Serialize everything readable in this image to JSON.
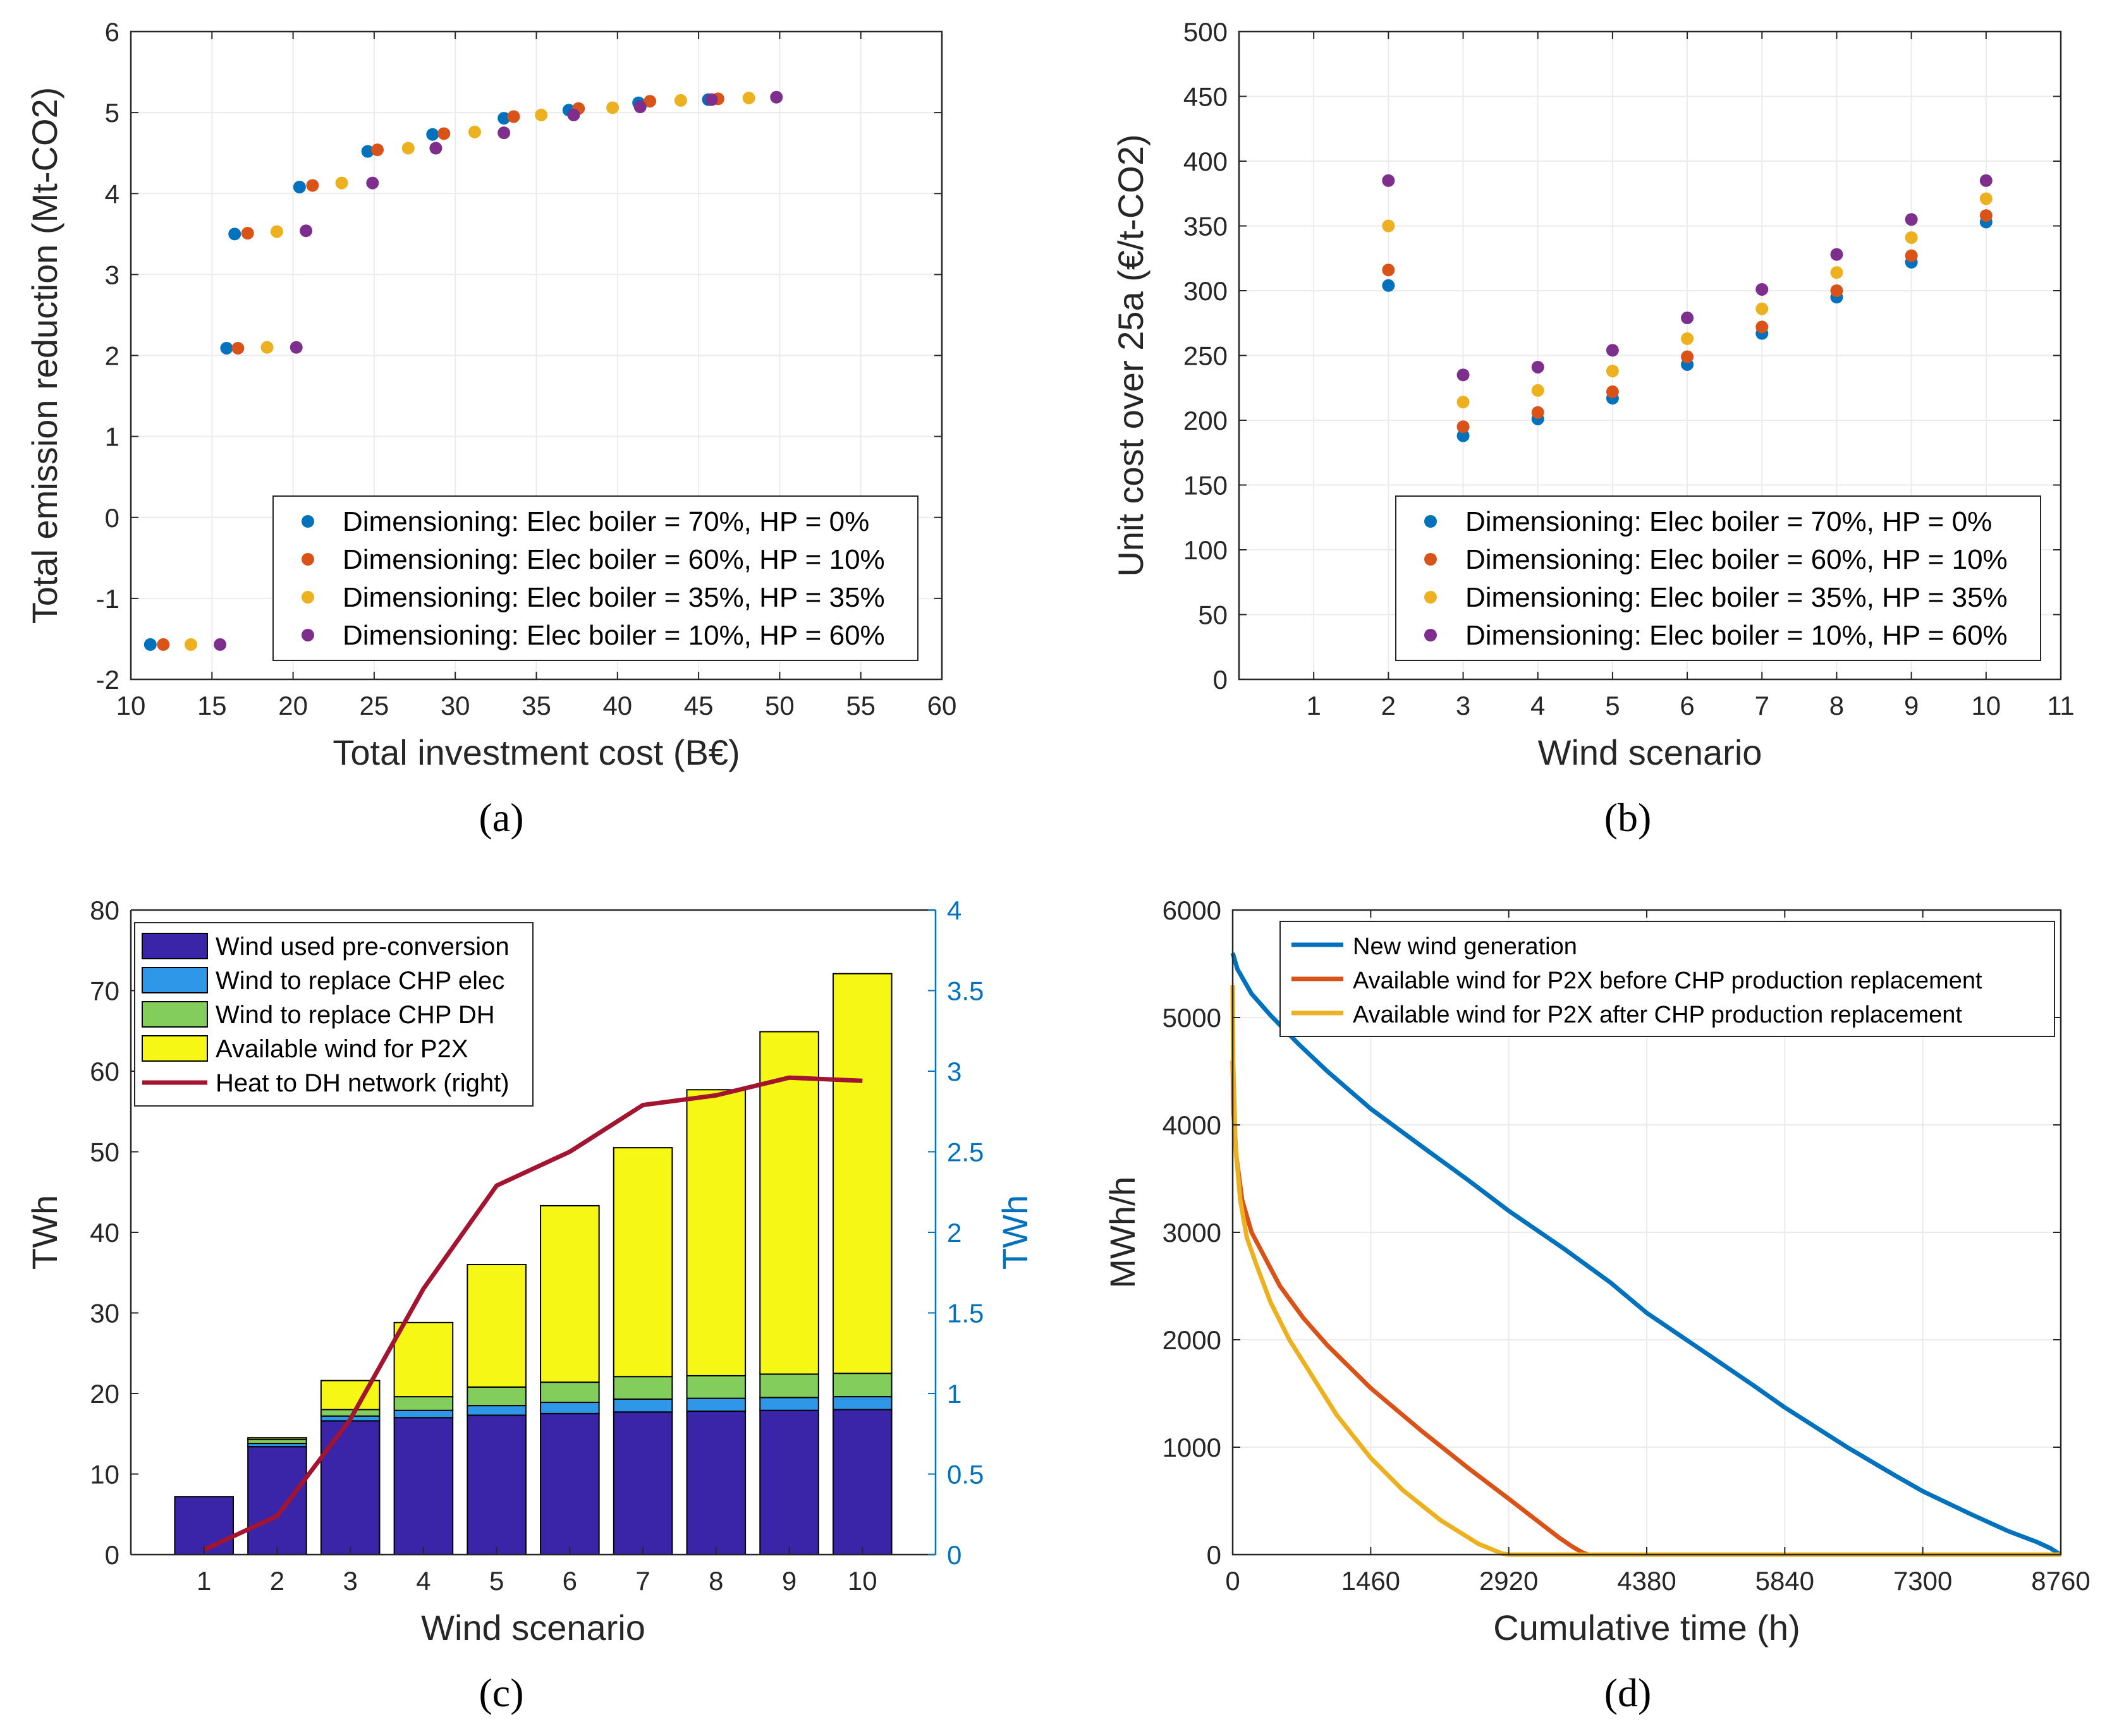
{
  "chart_data": [
    {
      "panel": "a",
      "panel_label": "(a)",
      "type": "scatter",
      "xlabel": "Total investment cost (B€)",
      "ylabel": "Total emission reduction (Mt-CO2)",
      "xlim": [
        10,
        60
      ],
      "ylim": [
        -2,
        6
      ],
      "xticks": [
        10,
        15,
        20,
        25,
        30,
        35,
        40,
        45,
        50,
        55,
        60
      ],
      "yticks": [
        -2,
        -1,
        0,
        1,
        2,
        3,
        4,
        5,
        6
      ],
      "grid": true,
      "legend_position": "bottom-right",
      "series": [
        {
          "name": "Dimensioning: Elec boiler = 70%, HP = 0%",
          "color": "#0072BD",
          "points": [
            [
              11.2,
              -1.57
            ],
            [
              15.9,
              2.09
            ],
            [
              16.4,
              3.5
            ],
            [
              20.4,
              4.08
            ],
            [
              24.6,
              4.52
            ],
            [
              28.6,
              4.73
            ],
            [
              33.0,
              4.93
            ],
            [
              37.0,
              5.03
            ],
            [
              41.3,
              5.12
            ],
            [
              45.6,
              5.16
            ]
          ]
        },
        {
          "name": "Dimensioning: Elec boiler = 60%, HP = 10%",
          "color": "#D95319",
          "points": [
            [
              12.0,
              -1.57
            ],
            [
              16.6,
              2.09
            ],
            [
              17.2,
              3.51
            ],
            [
              21.2,
              4.1
            ],
            [
              25.2,
              4.54
            ],
            [
              29.3,
              4.74
            ],
            [
              33.6,
              4.95
            ],
            [
              37.6,
              5.05
            ],
            [
              42.0,
              5.14
            ],
            [
              46.2,
              5.17
            ]
          ]
        },
        {
          "name": "Dimensioning: Elec boiler = 35%, HP = 35%",
          "color": "#EDB120",
          "points": [
            [
              13.7,
              -1.57
            ],
            [
              18.4,
              2.1
            ],
            [
              19.0,
              3.53
            ],
            [
              23.0,
              4.13
            ],
            [
              27.1,
              4.56
            ],
            [
              31.2,
              4.76
            ],
            [
              35.3,
              4.97
            ],
            [
              39.7,
              5.06
            ],
            [
              43.9,
              5.15
            ],
            [
              48.1,
              5.18
            ]
          ]
        },
        {
          "name": "Dimensioning: Elec boiler = 10%, HP = 60%",
          "color": "#7E2F8E",
          "points": [
            [
              15.5,
              -1.57
            ],
            [
              20.2,
              2.1
            ],
            [
              20.8,
              3.54
            ],
            [
              24.9,
              4.13
            ],
            [
              28.8,
              4.56
            ],
            [
              33.0,
              4.75
            ],
            [
              37.3,
              4.97
            ],
            [
              41.4,
              5.07
            ],
            [
              45.8,
              5.16
            ],
            [
              49.8,
              5.19
            ]
          ]
        }
      ]
    },
    {
      "panel": "b",
      "panel_label": "(b)",
      "type": "scatter",
      "xlabel": "Wind scenario",
      "ylabel": "Unit cost over 25a (€/t-CO2)",
      "xlim": [
        0,
        11
      ],
      "ylim": [
        0,
        500
      ],
      "xticks": [
        1,
        2,
        3,
        4,
        5,
        6,
        7,
        8,
        9,
        10,
        11
      ],
      "yticks": [
        0,
        50,
        100,
        150,
        200,
        250,
        300,
        350,
        400,
        450,
        500
      ],
      "grid": true,
      "legend_position": "bottom-right",
      "series": [
        {
          "name": "Dimensioning: Elec boiler = 70%, HP = 0%",
          "color": "#0072BD",
          "x": [
            2,
            3,
            4,
            5,
            6,
            7,
            8,
            9,
            10
          ],
          "values": [
            304,
            188,
            201,
            217,
            243,
            267,
            295,
            322,
            353
          ]
        },
        {
          "name": "Dimensioning: Elec boiler = 60%, HP = 10%",
          "color": "#D95319",
          "x": [
            2,
            3,
            4,
            5,
            6,
            7,
            8,
            9,
            10
          ],
          "values": [
            316,
            195,
            206,
            222,
            249,
            272,
            300,
            327,
            358
          ]
        },
        {
          "name": "Dimensioning: Elec boiler = 35%, HP = 35%",
          "color": "#EDB120",
          "x": [
            2,
            3,
            4,
            5,
            6,
            7,
            8,
            9,
            10
          ],
          "values": [
            350,
            214,
            223,
            238,
            263,
            286,
            314,
            341,
            371
          ]
        },
        {
          "name": "Dimensioning: Elec boiler = 10%, HP = 60%",
          "color": "#7E2F8E",
          "x": [
            2,
            3,
            4,
            5,
            6,
            7,
            8,
            9,
            10
          ],
          "values": [
            385,
            235,
            241,
            254,
            279,
            301,
            328,
            355,
            385
          ]
        }
      ]
    },
    {
      "panel": "c",
      "panel_label": "(c)",
      "type": "bar",
      "stacked": true,
      "xlabel": "Wind scenario",
      "ylabel": "TWh",
      "ylabel_right": "TWh",
      "ylim": [
        0,
        80
      ],
      "ylim_right": [
        0,
        4
      ],
      "yticks": [
        0,
        10,
        20,
        30,
        40,
        50,
        60,
        70,
        80
      ],
      "yticks_right": [
        "0",
        "0.5",
        "1",
        "1.5",
        "2",
        "2.5",
        "3",
        "3.5",
        "4"
      ],
      "categories": [
        "1",
        "2",
        "3",
        "4",
        "5",
        "6",
        "7",
        "8",
        "9",
        "10"
      ],
      "grid": false,
      "legend_position": "top-left",
      "series": [
        {
          "name": "Wind used pre-conversion",
          "color": "#3A24A8",
          "values": [
            7.2,
            13.4,
            16.6,
            17.0,
            17.3,
            17.5,
            17.7,
            17.8,
            17.9,
            18.0
          ]
        },
        {
          "name": "Wind to replace CHP elec",
          "color": "#2F97E8",
          "values": [
            0,
            0.4,
            0.6,
            0.9,
            1.2,
            1.4,
            1.6,
            1.6,
            1.6,
            1.6
          ]
        },
        {
          "name": "Wind to replace CHP DH",
          "color": "#82CD5C",
          "values": [
            0,
            0.5,
            0.8,
            1.7,
            2.3,
            2.5,
            2.8,
            2.8,
            2.9,
            2.9
          ]
        },
        {
          "name": "Available wind for P2X",
          "color": "#F7F715",
          "values": [
            0,
            0.2,
            3.6,
            9.2,
            15.2,
            21.9,
            28.4,
            35.5,
            42.5,
            49.6
          ]
        }
      ],
      "line_series": {
        "name": "Heat to DH network (right)",
        "color": "#A2142F",
        "axis": "right",
        "values": [
          0.03,
          0.24,
          0.84,
          1.65,
          2.29,
          2.5,
          2.79,
          2.85,
          2.96,
          2.94
        ]
      }
    },
    {
      "panel": "d",
      "panel_label": "(d)",
      "type": "line",
      "xlabel": "Cumulative time (h)",
      "ylabel": "MWh/h",
      "xlim": [
        0,
        8760
      ],
      "ylim": [
        0,
        6000
      ],
      "xticks": [
        0,
        1460,
        2920,
        4380,
        5840,
        7300,
        8760
      ],
      "yticks": [
        0,
        1000,
        2000,
        3000,
        4000,
        5000,
        6000
      ],
      "grid": true,
      "legend_position": "top-right",
      "series": [
        {
          "name": "New wind generation",
          "color": "#0072BD",
          "x": [
            0,
            50,
            200,
            400,
            700,
            1000,
            1460,
            2000,
            2500,
            2920,
            3500,
            4000,
            4380,
            5000,
            5500,
            5840,
            6500,
            7000,
            7300,
            7800,
            8200,
            8500,
            8650,
            8720,
            8760
          ],
          "values": [
            5600,
            5450,
            5220,
            5020,
            4750,
            4500,
            4150,
            3800,
            3480,
            3200,
            2850,
            2530,
            2250,
            1880,
            1580,
            1370,
            1000,
            740,
            590,
            380,
            220,
            120,
            60,
            20,
            0
          ]
        },
        {
          "name": "Available wind for P2X before CHP production replacement",
          "color": "#D95319",
          "x": [
            0,
            10,
            40,
            100,
            200,
            350,
            500,
            750,
            1000,
            1460,
            2000,
            2500,
            2920,
            3200,
            3450,
            3600,
            3700,
            3760,
            8760
          ],
          "values": [
            4600,
            4100,
            3700,
            3300,
            3000,
            2750,
            2500,
            2200,
            1950,
            1550,
            1150,
            800,
            520,
            330,
            160,
            70,
            20,
            0,
            0
          ]
        },
        {
          "name": "Available wind for P2X after CHP production replacement",
          "color": "#EDB120",
          "x": [
            0,
            5,
            30,
            80,
            150,
            250,
            400,
            600,
            850,
            1100,
            1460,
            1800,
            2200,
            2600,
            2850,
            2920,
            8760
          ],
          "values": [
            5300,
            4600,
            3800,
            3300,
            2950,
            2700,
            2350,
            2000,
            1650,
            1300,
            900,
            600,
            320,
            100,
            10,
            0,
            0
          ]
        }
      ]
    }
  ]
}
